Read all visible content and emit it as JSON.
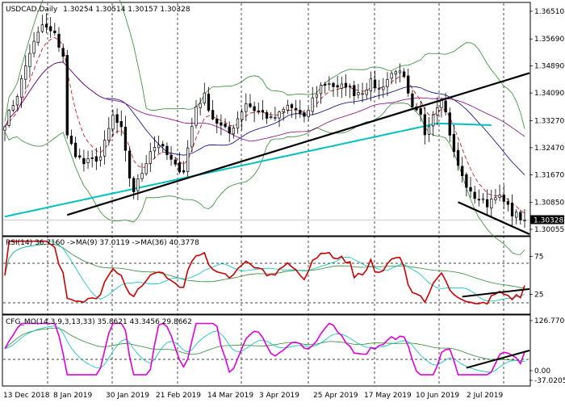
{
  "window": {
    "symbol_label": "USDCAD,Daily",
    "ohlc": "1.30254 1.30514 1.30157 1.30328"
  },
  "colors": {
    "candle": "#000000",
    "boll": "#2e8b2e",
    "ma_red": "#cc0000",
    "ma_navy": "#000080",
    "ma_purple": "#800080",
    "ma_cyan": "#00c0c0",
    "trend": "#000000",
    "rsi": "#cc0000",
    "rsi_ma_fast": "#00c0c0",
    "rsi_ma_slow": "#2e8b2e",
    "cfg": "#dd00dd",
    "cfg_fast": "#00c0c0",
    "cfg_slow": "#2e8b2e"
  },
  "price_panel": {
    "ticks": [
      "1.36510",
      "1.35690",
      "1.34890",
      "1.34090",
      "1.33270",
      "1.32470",
      "1.31670",
      "1.30850",
      "1.30055"
    ],
    "current_label": "1.30328"
  },
  "rsi_panel": {
    "label": "RSI(14) 36.7160 ->MA(9) 37.0119 ->MA(36) 40.3778",
    "ticks": [
      "75",
      "25"
    ]
  },
  "cfg_panel": {
    "label": "CFG_MO(14,3,9,3,13,33) 35.8621 43.3456 29.8662",
    "ticks": [
      "126.7700",
      "0.00",
      "-37.0205"
    ]
  },
  "x_axis": {
    "labels": [
      "13 Dec 2018",
      "8 Jan 2019",
      "30 Jan 2019",
      "21 Feb 2019",
      "14 Mar 2019",
      "3 Apr 2019",
      "25 Apr 2019",
      "17 May 2019",
      "10 Jun 2019",
      "2 Jul 2019"
    ]
  },
  "chart_data": {
    "type": "candlestick",
    "title": "USDCAD,Daily",
    "last_close": 1.30328,
    "y_range": [
      1.2991,
      1.367
    ],
    "y_ticks": [
      1.3651,
      1.3569,
      1.3489,
      1.3409,
      1.3327,
      1.3247,
      1.3167,
      1.3085,
      1.30055
    ],
    "close_path": [
      [
        0,
        1.332
      ],
      [
        3,
        1.3405
      ],
      [
        6,
        1.353
      ],
      [
        9,
        1.361
      ],
      [
        12,
        1.358
      ],
      [
        14,
        1.352
      ],
      [
        15,
        1.328
      ],
      [
        17,
        1.323
      ],
      [
        19,
        1.32
      ],
      [
        23,
        1.322
      ],
      [
        26,
        1.334
      ],
      [
        28,
        1.33
      ],
      [
        30,
        1.316
      ],
      [
        31,
        1.312
      ],
      [
        33,
        1.3175
      ],
      [
        35,
        1.324
      ],
      [
        37,
        1.326
      ],
      [
        39,
        1.3225
      ],
      [
        41,
        1.319
      ],
      [
        43,
        1.318
      ],
      [
        45,
        1.331
      ],
      [
        46,
        1.337
      ],
      [
        48,
        1.34
      ],
      [
        50,
        1.3335
      ],
      [
        52,
        1.331
      ],
      [
        54,
        1.329
      ],
      [
        56,
        1.3335
      ],
      [
        58,
        1.338
      ],
      [
        60,
        1.336
      ],
      [
        62,
        1.335
      ],
      [
        64,
        1.333
      ],
      [
        66,
        1.3345
      ],
      [
        68,
        1.337
      ],
      [
        70,
        1.336
      ],
      [
        72,
        1.333
      ],
      [
        74,
        1.339
      ],
      [
        76,
        1.343
      ],
      [
        78,
        1.344
      ],
      [
        80,
        1.342
      ],
      [
        82,
        1.3435
      ],
      [
        84,
        1.341
      ],
      [
        86,
        1.3415
      ],
      [
        88,
        1.344
      ],
      [
        90,
        1.342
      ],
      [
        92,
        1.345
      ],
      [
        94,
        1.348
      ],
      [
        96,
        1.345
      ],
      [
        97,
        1.34
      ],
      [
        98,
        1.336
      ],
      [
        100,
        1.334
      ],
      [
        101,
        1.329
      ],
      [
        103,
        1.335
      ],
      [
        105,
        1.34
      ],
      [
        106,
        1.335
      ],
      [
        108,
        1.323
      ],
      [
        110,
        1.316
      ],
      [
        112,
        1.311
      ],
      [
        114,
        1.3095
      ],
      [
        116,
        1.308
      ],
      [
        118,
        1.311
      ],
      [
        120,
        1.3085
      ],
      [
        122,
        1.3055
      ],
      [
        124,
        1.304
      ],
      [
        125,
        1.3033
      ]
    ],
    "bars": 126,
    "bollinger": {
      "period": 20,
      "deviation": 2
    },
    "moving_averages": [
      {
        "type": "ema",
        "period": 5
      },
      {
        "type": "ema",
        "period": 20
      },
      {
        "type": "sma",
        "period": 50
      },
      {
        "type": "sma",
        "period": 100
      }
    ],
    "trendlines": [
      {
        "from": [
          15,
          1.3048
        ],
        "to": [
          125,
          1.3468
        ]
      },
      {
        "from": [
          109,
          1.3086
        ],
        "to": [
          125,
          1.2991
        ]
      }
    ],
    "rsi": {
      "period": 14,
      "value": 36.716,
      "ma9": 37.0119,
      "ma36": 40.3778,
      "axis_ticks": [
        75,
        25
      ],
      "trendline": {
        "from": [
          110,
          22
        ],
        "to": [
          125,
          32
        ]
      }
    },
    "cfg_mo": {
      "params": "14,3,9,3,13,33",
      "values": [
        35.8621,
        43.3456,
        29.8662
      ],
      "axis_ticks": [
        126.77,
        0.0,
        -37.0205
      ],
      "trendline": {
        "from": [
          111,
          -10
        ],
        "to": [
          125,
          40
        ]
      }
    }
  }
}
